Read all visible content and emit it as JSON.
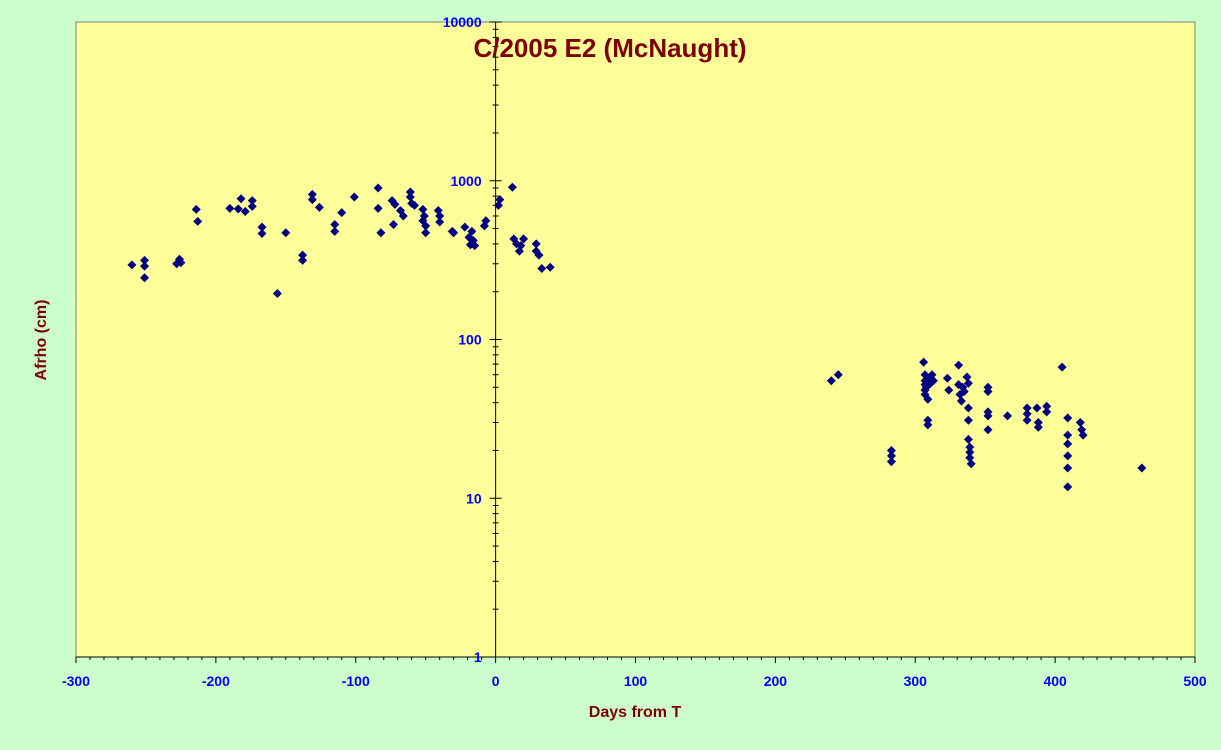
{
  "chart_data": {
    "type": "scatter",
    "title": "C/2005 E2 (McNaught)",
    "xlabel": "Days from T",
    "ylabel": "Afrho (cm)",
    "xlim": [
      -300,
      500
    ],
    "ylim": [
      1,
      10000
    ],
    "y_scale": "log",
    "x_ticks": [
      "-300",
      "-200",
      "-100",
      "0",
      "100",
      "200",
      "300",
      "400",
      "500"
    ],
    "y_ticks": [
      "1",
      "10",
      "100",
      "1000",
      "10000"
    ],
    "grid": false,
    "legend": "none",
    "colors": {
      "outer_background": "#CCFFCC",
      "plot_background": "#FFFF99",
      "marker": "#000080",
      "title": "#800000",
      "axis_title": "#800000",
      "tick_labels": "#0000FF"
    },
    "marker_shape": "diamond",
    "points": [
      [
        -260,
        295
      ],
      [
        -251,
        315
      ],
      [
        -251,
        290
      ],
      [
        -251,
        245
      ],
      [
        -228,
        300
      ],
      [
        -226,
        320
      ],
      [
        -225,
        305
      ],
      [
        -214,
        660
      ],
      [
        -213,
        555
      ],
      [
        -190,
        670
      ],
      [
        -184,
        665
      ],
      [
        -182,
        770
      ],
      [
        -179,
        640
      ],
      [
        -174,
        690
      ],
      [
        -174,
        750
      ],
      [
        -167,
        510
      ],
      [
        -167,
        465
      ],
      [
        -156,
        195
      ],
      [
        -150,
        470
      ],
      [
        -138,
        315
      ],
      [
        -138,
        340
      ],
      [
        -131,
        820
      ],
      [
        -131,
        760
      ],
      [
        -126,
        680
      ],
      [
        -115,
        480
      ],
      [
        -115,
        530
      ],
      [
        -110,
        630
      ],
      [
        -101,
        790
      ],
      [
        -84,
        900
      ],
      [
        -84,
        670
      ],
      [
        -82,
        470
      ],
      [
        -74,
        750
      ],
      [
        -73,
        530
      ],
      [
        -72,
        710
      ],
      [
        -68,
        650
      ],
      [
        -66,
        600
      ],
      [
        -61,
        850
      ],
      [
        -61,
        790
      ],
      [
        -60,
        720
      ],
      [
        -58,
        700
      ],
      [
        -52,
        660
      ],
      [
        -52,
        560
      ],
      [
        -51,
        600
      ],
      [
        -50,
        520
      ],
      [
        -50,
        470
      ],
      [
        -41,
        650
      ],
      [
        -40,
        600
      ],
      [
        -40,
        550
      ],
      [
        -31,
        480
      ],
      [
        -30,
        470
      ],
      [
        -22,
        510
      ],
      [
        -19,
        440
      ],
      [
        -18,
        395
      ],
      [
        -17,
        480
      ],
      [
        -16,
        420
      ],
      [
        -15,
        390
      ],
      [
        -8,
        520
      ],
      [
        -7,
        560
      ],
      [
        2,
        700
      ],
      [
        3,
        760
      ],
      [
        12,
        910
      ],
      [
        13,
        430
      ],
      [
        15,
        400
      ],
      [
        17,
        360
      ],
      [
        18,
        390
      ],
      [
        20,
        430
      ],
      [
        29,
        400
      ],
      [
        29,
        360
      ],
      [
        31,
        340
      ],
      [
        33,
        280
      ],
      [
        39,
        285
      ],
      [
        240,
        55
      ],
      [
        245,
        60
      ],
      [
        283,
        17
      ],
      [
        283,
        18.5
      ],
      [
        283,
        20
      ],
      [
        306,
        72
      ],
      [
        307,
        60
      ],
      [
        307,
        55
      ],
      [
        307,
        52
      ],
      [
        307,
        48
      ],
      [
        307,
        45
      ],
      [
        308,
        50
      ],
      [
        309,
        42
      ],
      [
        309,
        31
      ],
      [
        309,
        29
      ],
      [
        310,
        57
      ],
      [
        311,
        53
      ],
      [
        312,
        60
      ],
      [
        313,
        55
      ],
      [
        323,
        57
      ],
      [
        324,
        48
      ],
      [
        331,
        69
      ],
      [
        331,
        52
      ],
      [
        332,
        45
      ],
      [
        333,
        41
      ],
      [
        334,
        50
      ],
      [
        335,
        47
      ],
      [
        337,
        58
      ],
      [
        338,
        53
      ],
      [
        338,
        37
      ],
      [
        338,
        31
      ],
      [
        338,
        23.5
      ],
      [
        339,
        21
      ],
      [
        339,
        19.5
      ],
      [
        339,
        18
      ],
      [
        340,
        16.5
      ],
      [
        352,
        50
      ],
      [
        352,
        47
      ],
      [
        352,
        35
      ],
      [
        352,
        33
      ],
      [
        352,
        27
      ],
      [
        366,
        33
      ],
      [
        380,
        37
      ],
      [
        380,
        34
      ],
      [
        380,
        31
      ],
      [
        387,
        37
      ],
      [
        388,
        30
      ],
      [
        388,
        28
      ],
      [
        394,
        38
      ],
      [
        394,
        35
      ],
      [
        405,
        67
      ],
      [
        409,
        32
      ],
      [
        409,
        25
      ],
      [
        409,
        22
      ],
      [
        409,
        18.5
      ],
      [
        409,
        15.5
      ],
      [
        409,
        11.8
      ],
      [
        418,
        30
      ],
      [
        419,
        27
      ],
      [
        420,
        25
      ],
      [
        462,
        15.5
      ]
    ]
  }
}
